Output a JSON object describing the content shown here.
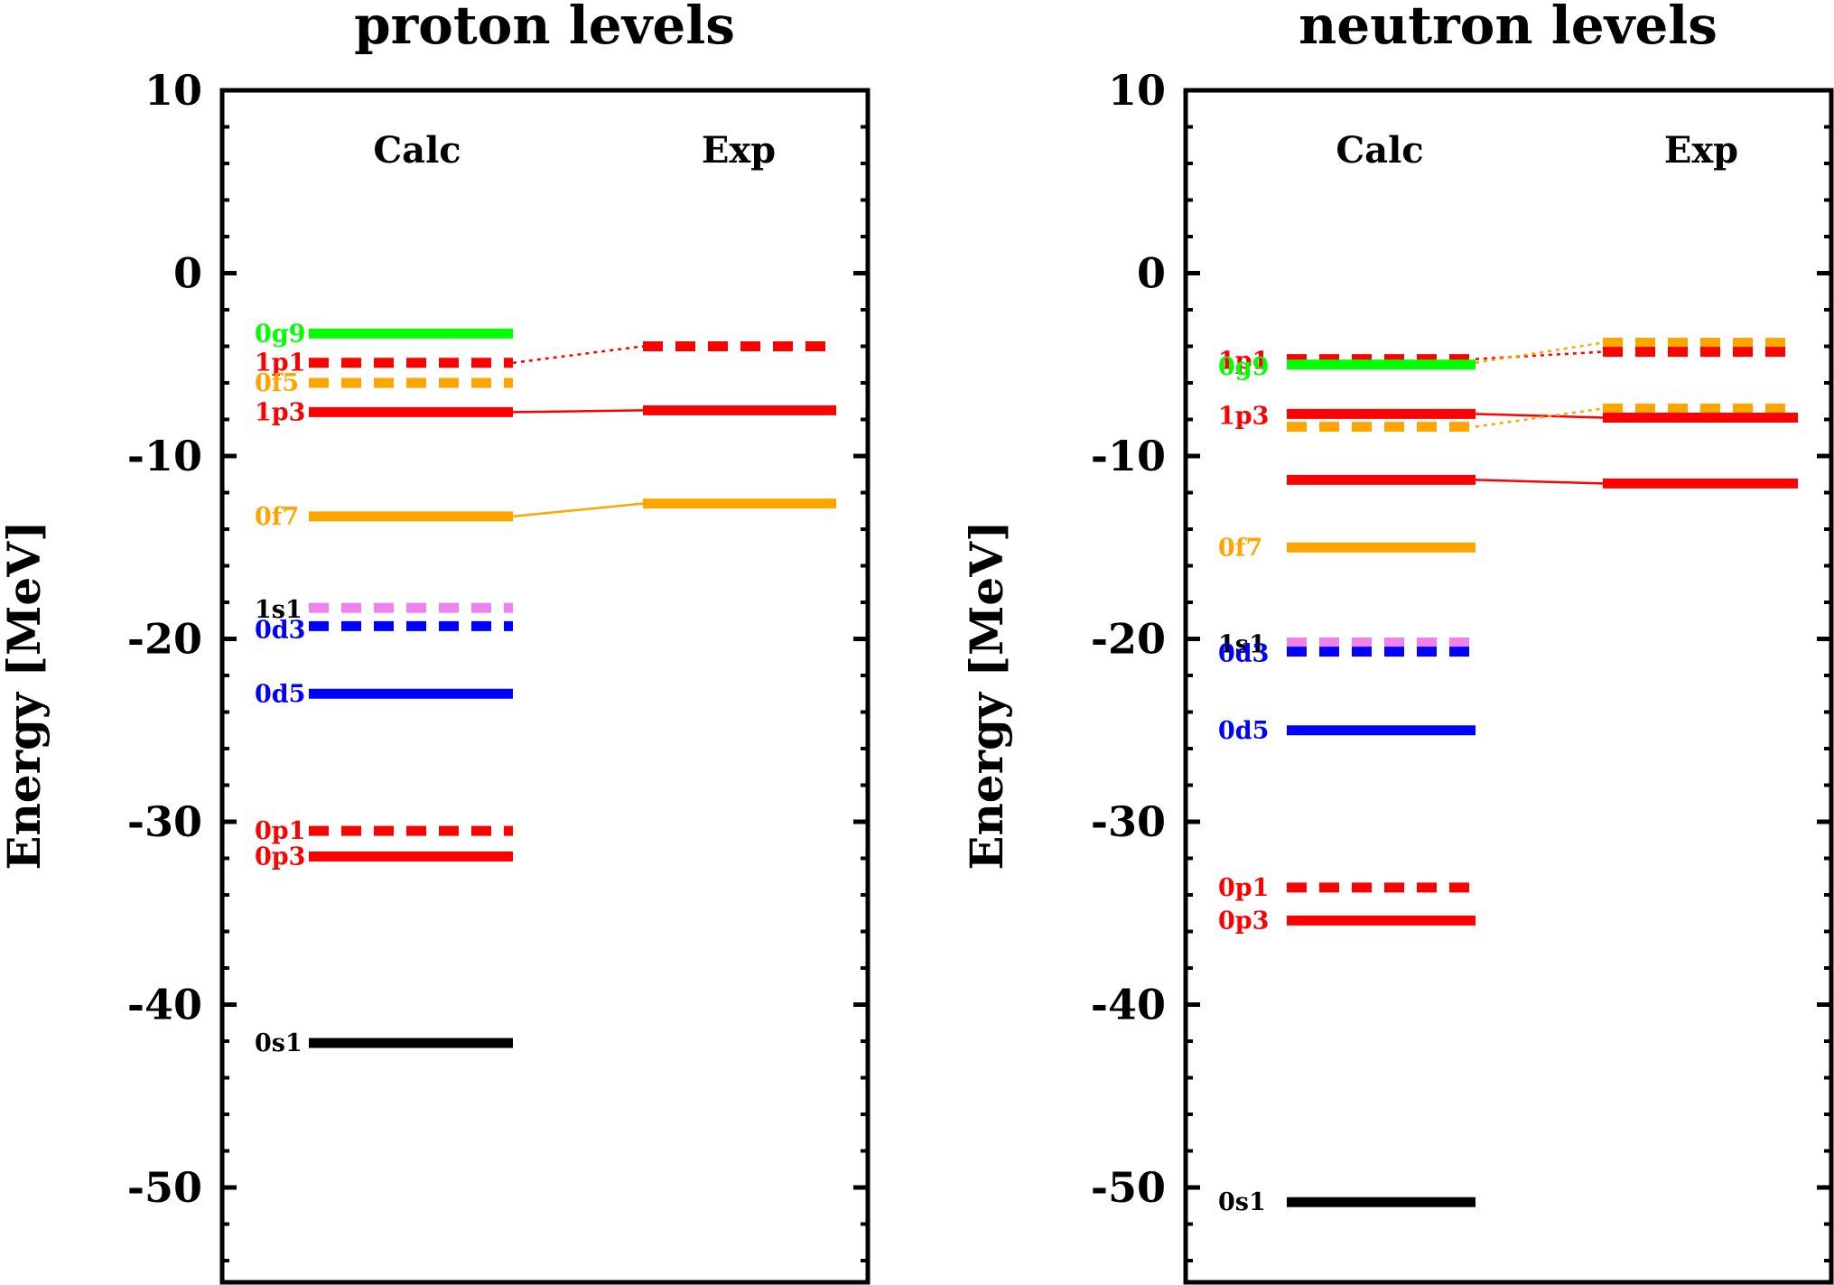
{
  "colors": {
    "0s1": "#000000",
    "0p3": "#ff0000",
    "0p1": "#ff0000",
    "0d5": "#0000ff",
    "0d3": "#0000ff",
    "1s1": "#ee82ee",
    "0f7": "#ffa500",
    "1p3": "#ff0000",
    "0f5": "#ffa500",
    "1p1": "#ff0000",
    "0g9": "#00ff00"
  },
  "chart_data": [
    {
      "type": "energy-levels",
      "title": "proton levels",
      "ylabel": "Energy [MeV]",
      "ylim": [
        -55,
        10
      ],
      "yticks": [
        10,
        0,
        -10,
        -20,
        -30,
        -40,
        -50
      ],
      "ytick_labels": [
        "10",
        "0",
        "-10",
        "-20",
        "-30",
        "-40",
        "-50"
      ],
      "columns": [
        "Calc",
        "Exp"
      ],
      "calc": [
        {
          "level": "0g9",
          "energy": -3.3,
          "style": "solid"
        },
        {
          "level": "1p1",
          "energy": -4.9,
          "style": "dashed"
        },
        {
          "level": "0f5",
          "energy": -6.0,
          "style": "dashed"
        },
        {
          "level": "1p3",
          "energy": -7.6,
          "style": "solid"
        },
        {
          "level": "0f7",
          "energy": -13.3,
          "style": "solid"
        },
        {
          "level": "1s1",
          "energy": -18.3,
          "style": "dashed"
        },
        {
          "level": "0d3",
          "energy": -19.3,
          "style": "dashed"
        },
        {
          "level": "0d5",
          "energy": -23.0,
          "style": "solid"
        },
        {
          "level": "0p1",
          "energy": -30.5,
          "style": "dashed"
        },
        {
          "level": "0p3",
          "energy": -31.9,
          "style": "solid"
        },
        {
          "level": "0s1",
          "energy": -42.1,
          "style": "solid"
        }
      ],
      "exp": [
        {
          "level": "1p1",
          "energy": -4.0,
          "style": "dashed"
        },
        {
          "level": "1p3",
          "energy": -7.5,
          "style": "solid"
        },
        {
          "level": "0f7",
          "energy": -12.6,
          "style": "solid"
        }
      ],
      "labels": [
        {
          "text": "0g9",
          "level": "0g9",
          "energy": -3.3
        },
        {
          "text": "1p1",
          "level": "1p1",
          "energy": -4.9
        },
        {
          "text": "0f5",
          "level": "0f5",
          "energy": -6.0
        },
        {
          "text": "1p3",
          "level": "1p3",
          "energy": -7.6
        },
        {
          "text": "0f7",
          "level": "0f7",
          "energy": -13.3
        },
        {
          "text": "1s1",
          "level": "0s1",
          "energy": -18.4
        },
        {
          "text": "0d3",
          "level": "0d3",
          "energy": -19.5
        },
        {
          "text": "0d5",
          "level": "0d5",
          "energy": -23.0
        },
        {
          "text": "0p1",
          "level": "0p1",
          "energy": -30.5
        },
        {
          "text": "0p3",
          "level": "0p3",
          "energy": -31.9
        },
        {
          "text": "0s1",
          "level": "0s1",
          "energy": -42.1
        }
      ],
      "connectors": [
        {
          "level": "1p1",
          "from": -4.9,
          "to": -4.0,
          "style": "dotted"
        },
        {
          "level": "1p3",
          "from": -7.6,
          "to": -7.5,
          "style": "solid"
        },
        {
          "level": "0f7",
          "from": -13.3,
          "to": -12.6,
          "style": "solid"
        }
      ]
    },
    {
      "type": "energy-levels",
      "title": "neutron levels",
      "ylabel": "Energy [MeV]",
      "ylim": [
        -55,
        10
      ],
      "yticks": [
        10,
        0,
        -10,
        -20,
        -30,
        -40,
        -50
      ],
      "ytick_labels": [
        "10",
        "0",
        "-10",
        "-20",
        "-30",
        "-40",
        "-50"
      ],
      "columns": [
        "Calc",
        "Exp"
      ],
      "calc": [
        {
          "level": "1p1",
          "energy": -4.7,
          "style": "dashed"
        },
        {
          "level": "0g9",
          "energy": -5.0,
          "style": "solid"
        },
        {
          "level": "1p3",
          "energy": -7.7,
          "style": "solid"
        },
        {
          "level": "0f5",
          "energy": -8.4,
          "style": "dashed"
        },
        {
          "level": "1p3",
          "energy": -11.3,
          "style": "solid"
        },
        {
          "level": "0f7",
          "energy": -15.0,
          "style": "solid"
        },
        {
          "level": "1s1",
          "energy": -20.2,
          "style": "dashed"
        },
        {
          "level": "0d3",
          "energy": -20.7,
          "style": "dashed"
        },
        {
          "level": "0d5",
          "energy": -25.0,
          "style": "solid"
        },
        {
          "level": "0p1",
          "energy": -33.6,
          "style": "dashed"
        },
        {
          "level": "0p3",
          "energy": -35.4,
          "style": "solid"
        },
        {
          "level": "0s1",
          "energy": -50.8,
          "style": "solid"
        }
      ],
      "exp": [
        {
          "level": "0f5",
          "energy": -3.8,
          "style": "dashed"
        },
        {
          "level": "1p1",
          "energy": -4.3,
          "style": "dashed"
        },
        {
          "level": "0f5",
          "energy": -7.4,
          "style": "dashed"
        },
        {
          "level": "1p3",
          "energy": -7.9,
          "style": "solid"
        },
        {
          "level": "1p3",
          "energy": -11.5,
          "style": "solid"
        }
      ],
      "labels": [
        {
          "text": "1p1",
          "level": "1p1",
          "energy": -4.8
        },
        {
          "text": "0g9",
          "level": "0g9",
          "energy": -5.1
        },
        {
          "text": "1p3",
          "level": "1p3",
          "energy": -7.8
        },
        {
          "text": "0f7",
          "level": "0f7",
          "energy": -15.0
        },
        {
          "text": "1s1",
          "level": "0s1",
          "energy": -20.3
        },
        {
          "text": "0d3",
          "level": "0d3",
          "energy": -20.8
        },
        {
          "text": "0d5",
          "level": "0d5",
          "energy": -25.0
        },
        {
          "text": "0p1",
          "level": "0p1",
          "energy": -33.6
        },
        {
          "text": "0p3",
          "level": "0p3",
          "energy": -35.4
        },
        {
          "text": "0s1",
          "level": "0s1",
          "energy": -50.8
        }
      ],
      "connectors": [
        {
          "level": "1p1",
          "from": -4.7,
          "to": -4.3,
          "style": "dotted"
        },
        {
          "level": "0f5",
          "from": -4.9,
          "to": -3.8,
          "style": "dotted"
        },
        {
          "level": "1p3",
          "from": -7.7,
          "to": -7.9,
          "style": "solid"
        },
        {
          "level": "0f5",
          "from": -8.4,
          "to": -7.4,
          "style": "dotted"
        },
        {
          "level": "1p3",
          "from": -11.3,
          "to": -11.5,
          "style": "solid"
        }
      ]
    }
  ]
}
